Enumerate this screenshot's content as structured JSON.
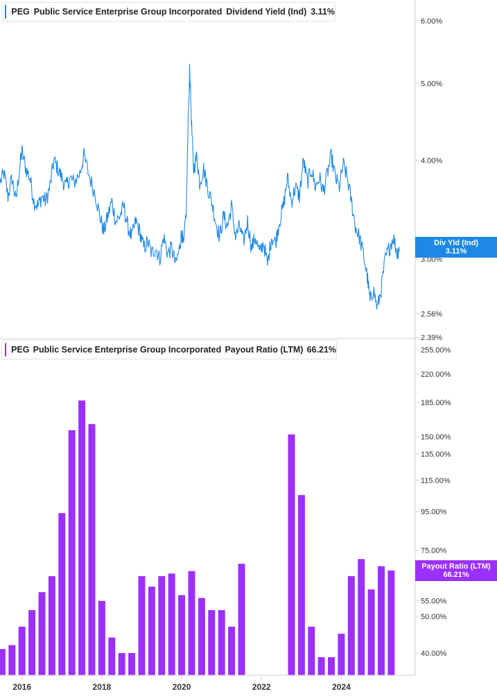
{
  "colors": {
    "yield": "#1e88e5",
    "payout": "#9b30ff",
    "axis": "#cfcfcf"
  },
  "legend_top": {
    "ticker": "PEG",
    "company": "Public Service Enterprise Group Incorporated",
    "metric": "Dividend Yield (Ind)",
    "value": "3.11%"
  },
  "legend_bottom": {
    "ticker": "PEG",
    "company": "Public Service Enterprise Group Incorporated",
    "metric": "Payout Ratio (LTM)",
    "value": "66.21%"
  },
  "tag_top": {
    "label": "Div Yld (Ind)",
    "value": "3.11%"
  },
  "tag_bottom": {
    "label": "Payout Ratio (LTM)",
    "value": "66.21%"
  },
  "chart_data": [
    {
      "type": "line",
      "series": [
        {
          "name": "Dividend Yield (Ind)"
        }
      ],
      "x_ticks": [
        "2016",
        "2018",
        "2020",
        "2022",
        "2024"
      ],
      "y_ticks": [
        "6.00%",
        "5.00%",
        "4.00%",
        "3.00%",
        "2.56%",
        "2.39%"
      ],
      "y_tick_values": [
        6.0,
        5.0,
        4.0,
        3.0,
        2.56,
        2.39
      ],
      "ylim": [
        2.39,
        6.4
      ],
      "xlim": [
        2015.45,
        2025.85
      ],
      "y_scale": "log",
      "points": [
        [
          2015.45,
          3.75
        ],
        [
          2015.55,
          3.85
        ],
        [
          2015.65,
          3.6
        ],
        [
          2015.75,
          3.8
        ],
        [
          2015.85,
          3.55
        ],
        [
          2015.95,
          3.95
        ],
        [
          2016.0,
          4.1
        ],
        [
          2016.1,
          3.9
        ],
        [
          2016.2,
          3.8
        ],
        [
          2016.3,
          3.55
        ],
        [
          2016.4,
          3.5
        ],
        [
          2016.5,
          3.6
        ],
        [
          2016.6,
          3.55
        ],
        [
          2016.7,
          3.7
        ],
        [
          2016.8,
          4.0
        ],
        [
          2016.9,
          3.9
        ],
        [
          2017.0,
          3.8
        ],
        [
          2017.1,
          3.7
        ],
        [
          2017.2,
          3.8
        ],
        [
          2017.3,
          3.75
        ],
        [
          2017.45,
          3.85
        ],
        [
          2017.55,
          4.05
        ],
        [
          2017.7,
          3.8
        ],
        [
          2017.85,
          3.6
        ],
        [
          2017.95,
          3.4
        ],
        [
          2018.05,
          3.25
        ],
        [
          2018.15,
          3.4
        ],
        [
          2018.25,
          3.55
        ],
        [
          2018.35,
          3.35
        ],
        [
          2018.45,
          3.4
        ],
        [
          2018.55,
          3.5
        ],
        [
          2018.65,
          3.3
        ],
        [
          2018.75,
          3.2
        ],
        [
          2018.85,
          3.35
        ],
        [
          2018.95,
          3.25
        ],
        [
          2019.05,
          3.1
        ],
        [
          2019.15,
          3.15
        ],
        [
          2019.25,
          3.05
        ],
        [
          2019.35,
          3.1
        ],
        [
          2019.45,
          3.0
        ],
        [
          2019.55,
          3.2
        ],
        [
          2019.65,
          3.05
        ],
        [
          2019.75,
          3.1
        ],
        [
          2019.85,
          2.95
        ],
        [
          2019.95,
          3.1
        ],
        [
          2020.0,
          3.25
        ],
        [
          2020.05,
          3.1
        ],
        [
          2020.12,
          3.5
        ],
        [
          2020.2,
          5.25
        ],
        [
          2020.25,
          4.4
        ],
        [
          2020.3,
          3.9
        ],
        [
          2020.38,
          4.05
        ],
        [
          2020.45,
          3.75
        ],
        [
          2020.55,
          3.9
        ],
        [
          2020.65,
          3.7
        ],
        [
          2020.75,
          3.55
        ],
        [
          2020.85,
          3.35
        ],
        [
          2020.95,
          3.2
        ],
        [
          2021.05,
          3.4
        ],
        [
          2021.15,
          3.3
        ],
        [
          2021.25,
          3.5
        ],
        [
          2021.35,
          3.2
        ],
        [
          2021.45,
          3.3
        ],
        [
          2021.55,
          3.15
        ],
        [
          2021.65,
          3.35
        ],
        [
          2021.75,
          3.1
        ],
        [
          2021.85,
          3.2
        ],
        [
          2021.95,
          3.05
        ],
        [
          2022.05,
          3.15
        ],
        [
          2022.15,
          2.95
        ],
        [
          2022.25,
          3.2
        ],
        [
          2022.35,
          3.15
        ],
        [
          2022.45,
          3.35
        ],
        [
          2022.55,
          3.5
        ],
        [
          2022.65,
          3.8
        ],
        [
          2022.75,
          3.55
        ],
        [
          2022.85,
          3.7
        ],
        [
          2022.95,
          3.6
        ],
        [
          2023.05,
          4.0
        ],
        [
          2023.15,
          3.75
        ],
        [
          2023.25,
          3.9
        ],
        [
          2023.35,
          3.7
        ],
        [
          2023.45,
          3.8
        ],
        [
          2023.55,
          3.65
        ],
        [
          2023.65,
          3.85
        ],
        [
          2023.75,
          4.05
        ],
        [
          2023.85,
          3.8
        ],
        [
          2023.95,
          3.7
        ],
        [
          2024.05,
          3.95
        ],
        [
          2024.15,
          3.8
        ],
        [
          2024.25,
          3.55
        ],
        [
          2024.35,
          3.3
        ],
        [
          2024.45,
          3.2
        ],
        [
          2024.55,
          3.05
        ],
        [
          2024.65,
          2.85
        ],
        [
          2024.72,
          2.65
        ],
        [
          2024.8,
          2.75
        ],
        [
          2024.9,
          2.6
        ],
        [
          2025.0,
          2.75
        ],
        [
          2025.1,
          3.0
        ],
        [
          2025.2,
          3.1
        ],
        [
          2025.3,
          3.2
        ],
        [
          2025.4,
          3.05
        ],
        [
          2025.45,
          3.11
        ]
      ]
    },
    {
      "type": "bar",
      "series": [
        {
          "name": "Payout Ratio (LTM)"
        }
      ],
      "y_ticks": [
        "255.00%",
        "220.00%",
        "185.00%",
        "150.00%",
        "135.00%",
        "115.00%",
        "95.00%",
        "75.00%",
        "55.00%",
        "50.00%",
        "40.00%"
      ],
      "y_tick_values": [
        255,
        220,
        185,
        150,
        135,
        115,
        95,
        75,
        55,
        50,
        40
      ],
      "ylim": [
        34,
        262
      ],
      "y_scale": "log",
      "x": [
        2015.5,
        2015.75,
        2016.0,
        2016.25,
        2016.5,
        2016.75,
        2017.0,
        2017.25,
        2017.5,
        2017.75,
        2018.0,
        2018.25,
        2018.5,
        2018.75,
        2019.0,
        2019.25,
        2019.5,
        2019.75,
        2020.0,
        2020.25,
        2020.5,
        2020.75,
        2021.0,
        2021.25,
        2021.5,
        2022.75,
        2023.0,
        2023.25,
        2023.5,
        2023.75,
        2024.0,
        2024.25,
        2024.5,
        2024.75,
        2025.0,
        2025.25
      ],
      "values": [
        41,
        42,
        47,
        52,
        58,
        64,
        94,
        156,
        187,
        162,
        55,
        44,
        40,
        40,
        64,
        60,
        64,
        65,
        57,
        66,
        56,
        52,
        52,
        47,
        69,
        152,
        105,
        47,
        39,
        39,
        45,
        64,
        71,
        59,
        68,
        66.21
      ]
    }
  ]
}
